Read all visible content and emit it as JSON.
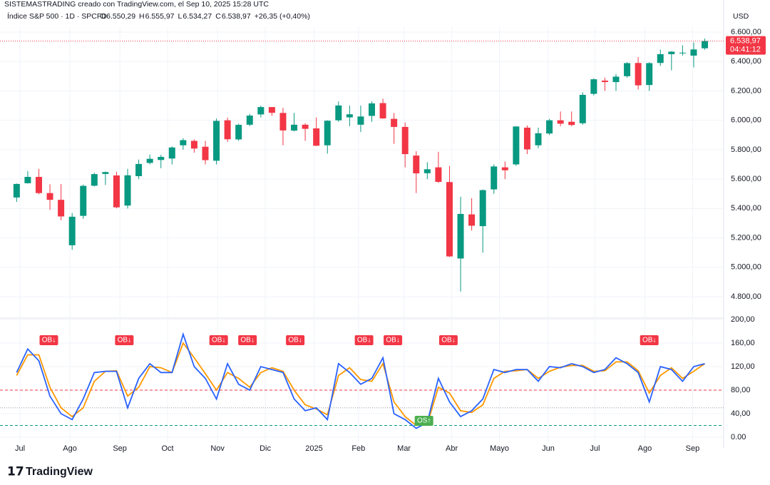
{
  "header": {
    "credit": "SISTEMASTRADING creado con TradingView.com, el Sep 10, 2025 15:28 UTC",
    "symbol": "Índice S&P 500 · 1D · SPCFD",
    "quote": [
      {
        "label": "O",
        "value": "6.550,29"
      },
      {
        "label": "H",
        "value": "6.555,97"
      },
      {
        "label": "L",
        "value": "6.534,27"
      },
      {
        "label": "C",
        "value": "6.538,97"
      }
    ],
    "change": "+26,35 (+0,40%)",
    "currency": "USD",
    "price_tag": "6.538,97",
    "countdown": "04:41:12",
    "logo": "TradingView"
  },
  "chart_data": [
    {
      "type": "candlestick",
      "up_color": "#089981",
      "down_color": "#f23645",
      "grid": true,
      "last_price": {
        "value": 6538.97,
        "color": "#f23645"
      },
      "xlim": [
        -0.6,
        64.6
      ],
      "xticks": [
        {
          "value": 0.3,
          "label": "Jul"
        },
        {
          "value": 4.8,
          "label": "Ago"
        },
        {
          "value": 9.3,
          "label": "Sep"
        },
        {
          "value": 13.6,
          "label": "Oct"
        },
        {
          "value": 18.1,
          "label": "Nov"
        },
        {
          "value": 22.4,
          "label": "Dic"
        },
        {
          "value": 26.8,
          "label": "2025"
        },
        {
          "value": 30.8,
          "label": "Feb"
        },
        {
          "value": 34.9,
          "label": "Mar"
        },
        {
          "value": 39.2,
          "label": "Abr"
        },
        {
          "value": 43.5,
          "label": "Mayo"
        },
        {
          "value": 47.9,
          "label": "Jun"
        },
        {
          "value": 52.1,
          "label": "Jul"
        },
        {
          "value": 56.6,
          "label": "Ago"
        },
        {
          "value": 60.9,
          "label": "Sep"
        }
      ],
      "ylim": [
        4780,
        6660
      ],
      "yticks": [
        {
          "value": 4800,
          "label": "4.800,00"
        },
        {
          "value": 5000,
          "label": "5.000,00"
        },
        {
          "value": 5200,
          "label": "5.200,00"
        },
        {
          "value": 5400,
          "label": "5.400,00"
        },
        {
          "value": 5600,
          "label": "5.600,00"
        },
        {
          "value": 5800,
          "label": "5.800,00"
        },
        {
          "value": 6000,
          "label": "6.000,00"
        },
        {
          "value": 6200,
          "label": "6.200,00"
        },
        {
          "value": 6400,
          "label": "6.400,00"
        },
        {
          "value": 6600,
          "label": "6.600,00"
        }
      ],
      "candles": [
        [
          5475,
          5570,
          5445,
          5567
        ],
        [
          5572,
          5655,
          5570,
          5615
        ],
        [
          5615,
          5670,
          5497,
          5505
        ],
        [
          5505,
          5565,
          5390,
          5459
        ],
        [
          5459,
          5566,
          5320,
          5346
        ],
        [
          5150,
          5370,
          5119,
          5344
        ],
        [
          5350,
          5563,
          5330,
          5554
        ],
        [
          5555,
          5643,
          5550,
          5634
        ],
        [
          5635,
          5651,
          5560,
          5648
        ],
        [
          5625,
          5650,
          5402,
          5408
        ],
        [
          5420,
          5670,
          5400,
          5626
        ],
        [
          5620,
          5733,
          5600,
          5703
        ],
        [
          5710,
          5767,
          5700,
          5738
        ],
        [
          5730,
          5765,
          5674,
          5751
        ],
        [
          5740,
          5822,
          5700,
          5815
        ],
        [
          5830,
          5878,
          5800,
          5865
        ],
        [
          5860,
          5870,
          5780,
          5808
        ],
        [
          5820,
          5860,
          5700,
          5729
        ],
        [
          5725,
          6012,
          5700,
          5996
        ],
        [
          6000,
          6018,
          5853,
          5871
        ],
        [
          5870,
          5977,
          5860,
          5969
        ],
        [
          5970,
          6044,
          5960,
          6032
        ],
        [
          6040,
          6099,
          6020,
          6090
        ],
        [
          6090,
          6090,
          6030,
          6051
        ],
        [
          6050,
          6085,
          5830,
          5931
        ],
        [
          5930,
          6050,
          5925,
          5970
        ],
        [
          5970,
          5980,
          5860,
          5942
        ],
        [
          5945,
          6020,
          5825,
          5827
        ],
        [
          5830,
          6000,
          5773,
          5997
        ],
        [
          6000,
          6128,
          5990,
          6101
        ],
        [
          6020,
          6100,
          5960,
          6041
        ],
        [
          5970,
          6100,
          5920,
          6026
        ],
        [
          6030,
          6128,
          5990,
          6115
        ],
        [
          6117,
          6147,
          6010,
          6013
        ],
        [
          6010,
          6050,
          5840,
          5955
        ],
        [
          5955,
          5985,
          5680,
          5770
        ],
        [
          5760,
          5790,
          5505,
          5639
        ],
        [
          5640,
          5715,
          5600,
          5667
        ],
        [
          5680,
          5786,
          5575,
          5581
        ],
        [
          5580,
          5690,
          5070,
          5074
        ],
        [
          5060,
          5480,
          4835,
          5363
        ],
        [
          5360,
          5470,
          5250,
          5283
        ],
        [
          5280,
          5530,
          5100,
          5525
        ],
        [
          5530,
          5700,
          5500,
          5686
        ],
        [
          5680,
          5720,
          5600,
          5660
        ],
        [
          5700,
          5960,
          5690,
          5958
        ],
        [
          5950,
          5965,
          5770,
          5802
        ],
        [
          5830,
          5950,
          5810,
          5912
        ],
        [
          5910,
          6010,
          5900,
          6000
        ],
        [
          6000,
          6060,
          5960,
          5977
        ],
        [
          5990,
          6060,
          5960,
          5968
        ],
        [
          5980,
          6190,
          5970,
          6173
        ],
        [
          6180,
          6285,
          6170,
          6279
        ],
        [
          6270,
          6290,
          6200,
          6260
        ],
        [
          6260,
          6315,
          6200,
          6297
        ],
        [
          6300,
          6395,
          6290,
          6389
        ],
        [
          6390,
          6430,
          6210,
          6238
        ],
        [
          6240,
          6395,
          6200,
          6389
        ],
        [
          6390,
          6481,
          6370,
          6450
        ],
        [
          6450,
          6470,
          6340,
          6467
        ],
        [
          6460,
          6510,
          6440,
          6460
        ],
        [
          6440,
          6530,
          6360,
          6482
        ],
        [
          6490,
          6556,
          6480,
          6539
        ]
      ]
    },
    {
      "type": "line",
      "grid": true,
      "xlim": [
        -0.6,
        64.6
      ],
      "ylim": [
        -4,
        202
      ],
      "yticks": [
        {
          "value": 0,
          "label": "0.00"
        },
        {
          "value": 40,
          "label": "40,00"
        },
        {
          "value": 80,
          "label": "80,00"
        },
        {
          "value": 120,
          "label": "120,00"
        },
        {
          "value": 160,
          "label": "160,00"
        },
        {
          "value": 200,
          "label": "200,00"
        }
      ],
      "levels": [
        {
          "value": 80,
          "color": "#f23645"
        },
        {
          "value": 50,
          "color": "#9598a1"
        },
        {
          "value": 20,
          "color": "#089981"
        }
      ],
      "series": [
        {
          "color": "#2962ff",
          "values": [
            110,
            150,
            130,
            70,
            40,
            30,
            65,
            110,
            112,
            112,
            50,
            100,
            125,
            110,
            110,
            175,
            120,
            100,
            65,
            125,
            90,
            80,
            120,
            115,
            110,
            65,
            45,
            50,
            30,
            125,
            110,
            90,
            100,
            135,
            40,
            30,
            15,
            25,
            100,
            60,
            35,
            45,
            65,
            115,
            110,
            115,
            115,
            95,
            120,
            118,
            125,
            120,
            110,
            115,
            135,
            125,
            110,
            60,
            120,
            115,
            95,
            120,
            125
          ]
        },
        {
          "color": "#ff9800",
          "values": [
            105,
            140,
            140,
            85,
            50,
            35,
            50,
            95,
            112,
            113,
            70,
            85,
            120,
            118,
            110,
            160,
            135,
            108,
            80,
            110,
            100,
            85,
            110,
            118,
            112,
            80,
            55,
            48,
            38,
            105,
            118,
            98,
            95,
            125,
            60,
            35,
            20,
            22,
            85,
            75,
            45,
            42,
            55,
            100,
            112,
            113,
            115,
            100,
            112,
            119,
            122,
            122,
            112,
            113,
            128,
            128,
            113,
            75,
            105,
            118,
            100,
            112,
            125
          ]
        }
      ],
      "signals": [
        {
          "x": 2.9,
          "label": "OB↓"
        },
        {
          "x": 9.7,
          "label": "OB↓"
        },
        {
          "x": 18.2,
          "label": "OB↓"
        },
        {
          "x": 20.8,
          "label": "OB↓"
        },
        {
          "x": 25.1,
          "label": "OB↓"
        },
        {
          "x": 31.3,
          "label": "OB↓"
        },
        {
          "x": 33.9,
          "label": "OB↓"
        },
        {
          "x": 38.9,
          "label": "OB↓"
        },
        {
          "x": 57.0,
          "label": "OB↓"
        },
        {
          "x": 36.7,
          "label": "OS↑"
        }
      ]
    }
  ]
}
